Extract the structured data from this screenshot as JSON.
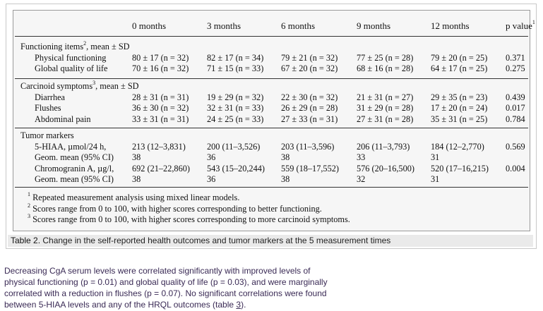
{
  "table": {
    "headers": [
      "",
      "0 months",
      "3 months",
      "6 months",
      "9 months",
      "12 months",
      "p value"
    ],
    "p_value_sup": "1",
    "sections": [
      {
        "title": "Functioning items",
        "title_sup": "2",
        "title_suffix": ", mean ± SD",
        "rows": [
          {
            "label": "Physical functioning",
            "values": [
              "80 ± 17 (n = 32)",
              "82 ± 17 (n = 34)",
              "79 ± 21 (n = 32)",
              "77 ± 25 (n = 28)",
              "79 ± 20 (n = 25)",
              "0.371"
            ]
          },
          {
            "label": "Global quality of life",
            "values": [
              "70 ± 16 (n = 32)",
              "71 ± 15 (n = 33)",
              "67 ± 20 (n = 32)",
              "68 ± 16 (n = 28)",
              "64 ± 17 (n = 25)",
              "0.275"
            ]
          }
        ]
      },
      {
        "title": "Carcinoid symptoms",
        "title_sup": "3",
        "title_suffix": ", mean ± SD",
        "rows": [
          {
            "label": "Diarrhea",
            "values": [
              "28 ± 31 (n = 31)",
              "19 ± 29 (n = 32)",
              "22 ± 30 (n = 32)",
              "21 ± 31 (n = 27)",
              "29 ± 35 (n = 23)",
              "0.439"
            ]
          },
          {
            "label": "Flushes",
            "values": [
              "36 ± 30 (n = 32)",
              "32 ± 31 (n = 33)",
              "26 ± 29 (n = 28)",
              "31 ± 29 (n = 28)",
              "17 ± 20 (n = 24)",
              "0.017"
            ]
          },
          {
            "label": "Abdominal pain",
            "values": [
              "33 ± 31 (n = 31)",
              "24 ± 25 (n = 33)",
              "27 ± 33 (n = 31)",
              "27 ± 31 (n = 28)",
              "35 ± 31 (n = 25)",
              "0.784"
            ]
          }
        ]
      },
      {
        "title": "Tumor markers",
        "title_sup": "",
        "title_suffix": "",
        "rows": [
          {
            "label": "5-HIAA, µmol/24 h,",
            "values": [
              "213 (12–3,831)",
              "200 (11–3,526)",
              "203 (11–3,596)",
              "206 (11–3,793)",
              "184 (12–2,770)",
              "0.569"
            ]
          },
          {
            "label": "Geom. mean (95% CI)",
            "values": [
              "38",
              "36",
              "38",
              "33",
              "31",
              ""
            ]
          },
          {
            "label": "Chromogranin A, µg/l,",
            "values": [
              "692 (21–22,860)",
              "543 (15–20,244)",
              "559 (18–17,552)",
              "576 (20–16,500)",
              "520 (17–16,215)",
              "0.004"
            ]
          },
          {
            "label": "Geom. mean (95% CI)",
            "values": [
              "38",
              "36",
              "38",
              "32",
              "31",
              ""
            ]
          }
        ]
      }
    ],
    "footnotes": [
      {
        "sup": "1",
        "text": " Repeated measurement analysis using mixed linear models."
      },
      {
        "sup": "2",
        "text": " Scores range from 0 to 100, with higher scores corresponding to better functioning."
      },
      {
        "sup": "3",
        "text": " Scores range from 0 to 100, with higher scores corresponding to more carcinoid symptoms."
      }
    ]
  },
  "caption": {
    "label": "Table 2.",
    "text": " Change in the self-reported health outcomes and tumor markers at the 5 measurement times"
  },
  "paragraph": {
    "lines": [
      "Decreasing CgA serum levels were correlated significantly with improved levels of",
      "physical functioning (p = 0.01) and global quality of life (p = 0.03), and were marginally",
      "correlated with a reduction in flushes (p = 0.07). No significant correlations were found"
    ],
    "last_line_prefix": "between 5-HIAA levels and any of the HRQL outcomes (table ",
    "link_text": "3",
    "last_line_suffix": ")."
  }
}
